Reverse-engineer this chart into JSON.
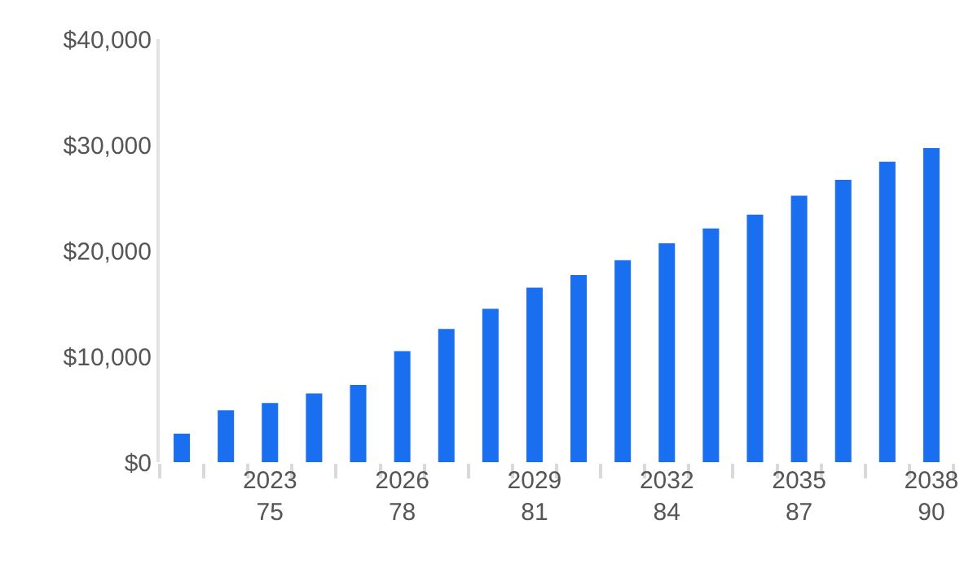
{
  "chart_data": {
    "type": "bar",
    "categories": [
      null,
      null,
      "2023\n75",
      null,
      null,
      "2026\n78",
      null,
      null,
      "2029\n81",
      null,
      null,
      "2032\n84",
      null,
      null,
      "2035\n87",
      null,
      null,
      "2038\n90"
    ],
    "values": [
      2700,
      4900,
      5600,
      6500,
      7300,
      10500,
      12600,
      14500,
      16500,
      17700,
      19100,
      20700,
      22100,
      23400,
      25200,
      26700,
      28400,
      29700
    ],
    "color": "#1a6ef0",
    "ylim": [
      0,
      40000
    ],
    "yticks": [
      {
        "value": 0,
        "label": "$0"
      },
      {
        "value": 10000,
        "label": "$10,000"
      },
      {
        "value": 20000,
        "label": "$20,000"
      },
      {
        "value": 30000,
        "label": "$30,000"
      },
      {
        "value": 40000,
        "label": "$40,000"
      }
    ],
    "grid": false
  }
}
